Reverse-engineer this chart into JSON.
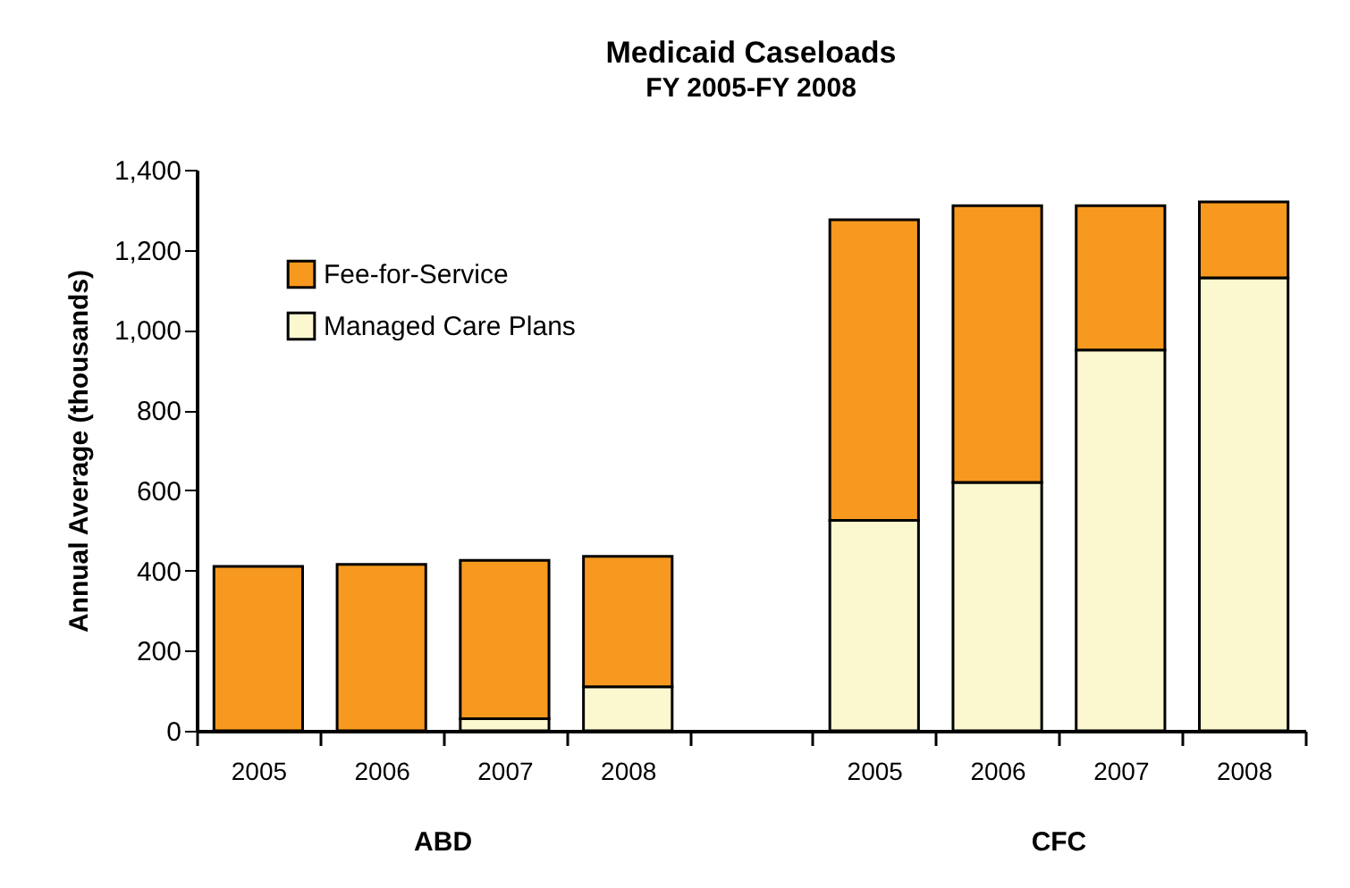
{
  "chart_data": {
    "type": "bar",
    "title": "Medicaid Caseloads",
    "subtitle": "FY 2005-FY 2008",
    "ylabel": "Annual Average (thousands)",
    "categories": [
      "2005",
      "2006",
      "2007",
      "2008",
      null,
      "2005",
      "2006",
      "2007",
      "2008"
    ],
    "series": [
      {
        "name": "Managed Care Plans",
        "color": "#fbf8d0",
        "values": [
          0,
          0,
          30,
          110,
          null,
          525,
          620,
          950,
          1130
        ]
      },
      {
        "name": "Fee-for-Service",
        "color": "#f7991f",
        "values": [
          410,
          415,
          395,
          325,
          null,
          750,
          690,
          360,
          190
        ]
      }
    ],
    "stacked": true,
    "ylim": [
      0,
      1400
    ],
    "yticks": [
      0,
      {
        "value": 200,
        "label": "200"
      },
      {
        "value": 400,
        "label": "400"
      },
      {
        "value": 600,
        "label": "600"
      },
      {
        "value": 800,
        "label": "800"
      },
      {
        "value": 1000,
        "label": "1,000"
      },
      {
        "value": 1200,
        "label": "1,200"
      },
      {
        "value": 1400,
        "label": "1,400"
      }
    ],
    "legend": "top left",
    "grid": false,
    "annotations": [
      "ABD",
      "CFC"
    ]
  }
}
